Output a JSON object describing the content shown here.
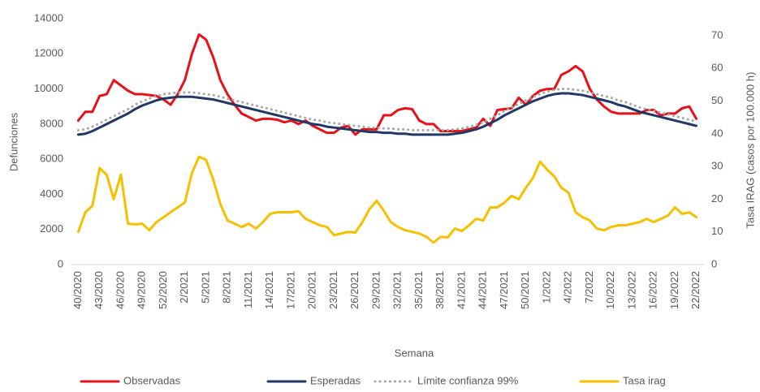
{
  "chart_data": {
    "type": "line",
    "x_label": "Semana",
    "y_label": "Defunciones",
    "y2_label": "Tasa IRAG (casos por 100.000 h)",
    "categories": [
      "40/2020",
      null,
      null,
      "43/2020",
      null,
      null,
      "46/2020",
      null,
      null,
      "49/2020",
      null,
      null,
      "52/2020",
      null,
      null,
      "2/2021",
      null,
      null,
      "5/2021",
      null,
      null,
      "8/2021",
      null,
      null,
      "11/2021",
      null,
      null,
      "14/2021",
      null,
      null,
      "17/2021",
      null,
      null,
      "20/2021",
      null,
      null,
      "23/2021",
      null,
      null,
      "26/2021",
      null,
      null,
      "29/2021",
      null,
      null,
      "32/2021",
      null,
      null,
      "35/2021",
      null,
      null,
      "38/2021",
      null,
      null,
      "41/2021",
      null,
      null,
      "44/2021",
      null,
      null,
      "47/2021",
      null,
      null,
      "50/2021",
      null,
      null,
      "1/2022",
      null,
      null,
      "4/2022",
      null,
      null,
      "7/2022",
      null,
      null,
      "10/2022",
      null,
      null,
      "13/2022",
      null,
      null,
      "16/2022",
      null,
      null,
      "19/2022",
      null,
      null,
      "22/2022"
    ],
    "series": [
      {
        "name": "Observadas",
        "color": "#e8111a",
        "values": [
          8200,
          8700,
          8700,
          9600,
          9700,
          10500,
          10200,
          9900,
          9700,
          9700,
          9650,
          9600,
          9400,
          9100,
          9700,
          10500,
          12000,
          13100,
          12800,
          11800,
          10500,
          9700,
          9100,
          8600,
          8400,
          8200,
          8300,
          8300,
          8250,
          8100,
          8200,
          8000,
          8200,
          7900,
          7700,
          7500,
          7500,
          7800,
          7900,
          7400,
          7700,
          7700,
          7700,
          8500,
          8500,
          8800,
          8900,
          8850,
          8200,
          8000,
          8000,
          7600,
          7600,
          7600,
          7600,
          7700,
          7800,
          8300,
          7900,
          8800,
          8850,
          8900,
          9500,
          9100,
          9600,
          9900,
          10000,
          10000,
          10800,
          11000,
          11300,
          11000,
          10000,
          9400,
          9000,
          8700,
          8600,
          8600,
          8600,
          8600,
          8800,
          8800,
          8500,
          8600,
          8600,
          8900,
          9000,
          8300
        ]
      },
      {
        "name": "Esperadas",
        "color": "#1f3864",
        "values": [
          7400,
          7450,
          7600,
          7800,
          8000,
          8200,
          8400,
          8600,
          8850,
          9050,
          9200,
          9350,
          9450,
          9500,
          9550,
          9550,
          9550,
          9500,
          9450,
          9400,
          9300,
          9200,
          9100,
          9000,
          8900,
          8800,
          8700,
          8600,
          8500,
          8400,
          8300,
          8200,
          8100,
          8000,
          7950,
          7850,
          7800,
          7750,
          7700,
          7650,
          7600,
          7550,
          7550,
          7500,
          7500,
          7450,
          7450,
          7400,
          7400,
          7400,
          7400,
          7400,
          7400,
          7450,
          7500,
          7600,
          7700,
          7850,
          8050,
          8250,
          8500,
          8700,
          8900,
          9100,
          9300,
          9450,
          9600,
          9700,
          9750,
          9750,
          9700,
          9650,
          9550,
          9450,
          9350,
          9250,
          9100,
          9000,
          8850,
          8700,
          8600,
          8500,
          8400,
          8300,
          8200,
          8100,
          8000,
          7900
        ]
      },
      {
        "name": "Límite confianza 99%",
        "color": "#a6a6a6",
        "line_style": "dotted",
        "values": [
          7650,
          7700,
          7850,
          8050,
          8250,
          8450,
          8650,
          8850,
          9100,
          9300,
          9450,
          9600,
          9700,
          9750,
          9800,
          9800,
          9800,
          9750,
          9700,
          9650,
          9550,
          9450,
          9350,
          9250,
          9150,
          9050,
          8950,
          8850,
          8750,
          8650,
          8550,
          8450,
          8350,
          8250,
          8200,
          8100,
          8050,
          8000,
          7950,
          7900,
          7850,
          7800,
          7800,
          7750,
          7750,
          7700,
          7700,
          7650,
          7650,
          7650,
          7650,
          7650,
          7650,
          7700,
          7750,
          7850,
          7950,
          8100,
          8300,
          8500,
          8750,
          8950,
          9150,
          9350,
          9550,
          9700,
          9850,
          9950,
          10000,
          10000,
          9950,
          9900,
          9800,
          9700,
          9600,
          9500,
          9350,
          9250,
          9100,
          8950,
          8850,
          8750,
          8650,
          8550,
          8450,
          8350,
          8250,
          8150
        ]
      },
      {
        "name": "Tasa irag",
        "color": "#f5c000",
        "axis": "y2",
        "values": [
          10,
          16,
          18,
          29.5,
          27.5,
          20,
          27.5,
          12.5,
          12.3,
          12.5,
          10.5,
          13,
          14.5,
          16,
          17.5,
          19,
          28,
          33,
          32,
          26,
          18.5,
          13.5,
          12.5,
          11.5,
          12.5,
          11,
          13,
          15.5,
          16,
          16,
          16,
          16.3,
          14,
          13,
          12,
          11.5,
          9,
          9.5,
          10,
          9.8,
          13,
          17,
          19.5,
          16.5,
          13,
          11.5,
          10.5,
          10,
          9.5,
          8.5,
          6.7,
          8.5,
          8.3,
          11,
          10.3,
          12,
          14,
          13.5,
          17.5,
          17.5,
          19,
          21,
          20,
          23.5,
          26.5,
          31.5,
          29,
          27,
          23.5,
          22,
          16,
          14.5,
          13.5,
          11,
          10.5,
          11.5,
          12,
          12,
          12.5,
          13,
          14,
          13,
          14,
          15,
          17.5,
          15.5,
          16,
          14.5
        ]
      }
    ],
    "ylim": [
      0,
      14000
    ],
    "yticks": [
      0,
      2000,
      4000,
      6000,
      8000,
      10000,
      12000,
      14000
    ],
    "y2lim": [
      0,
      70
    ],
    "y2ticks": [
      0,
      10,
      20,
      30,
      40,
      50,
      60,
      70
    ],
    "grid": false,
    "legend": "bottom"
  }
}
